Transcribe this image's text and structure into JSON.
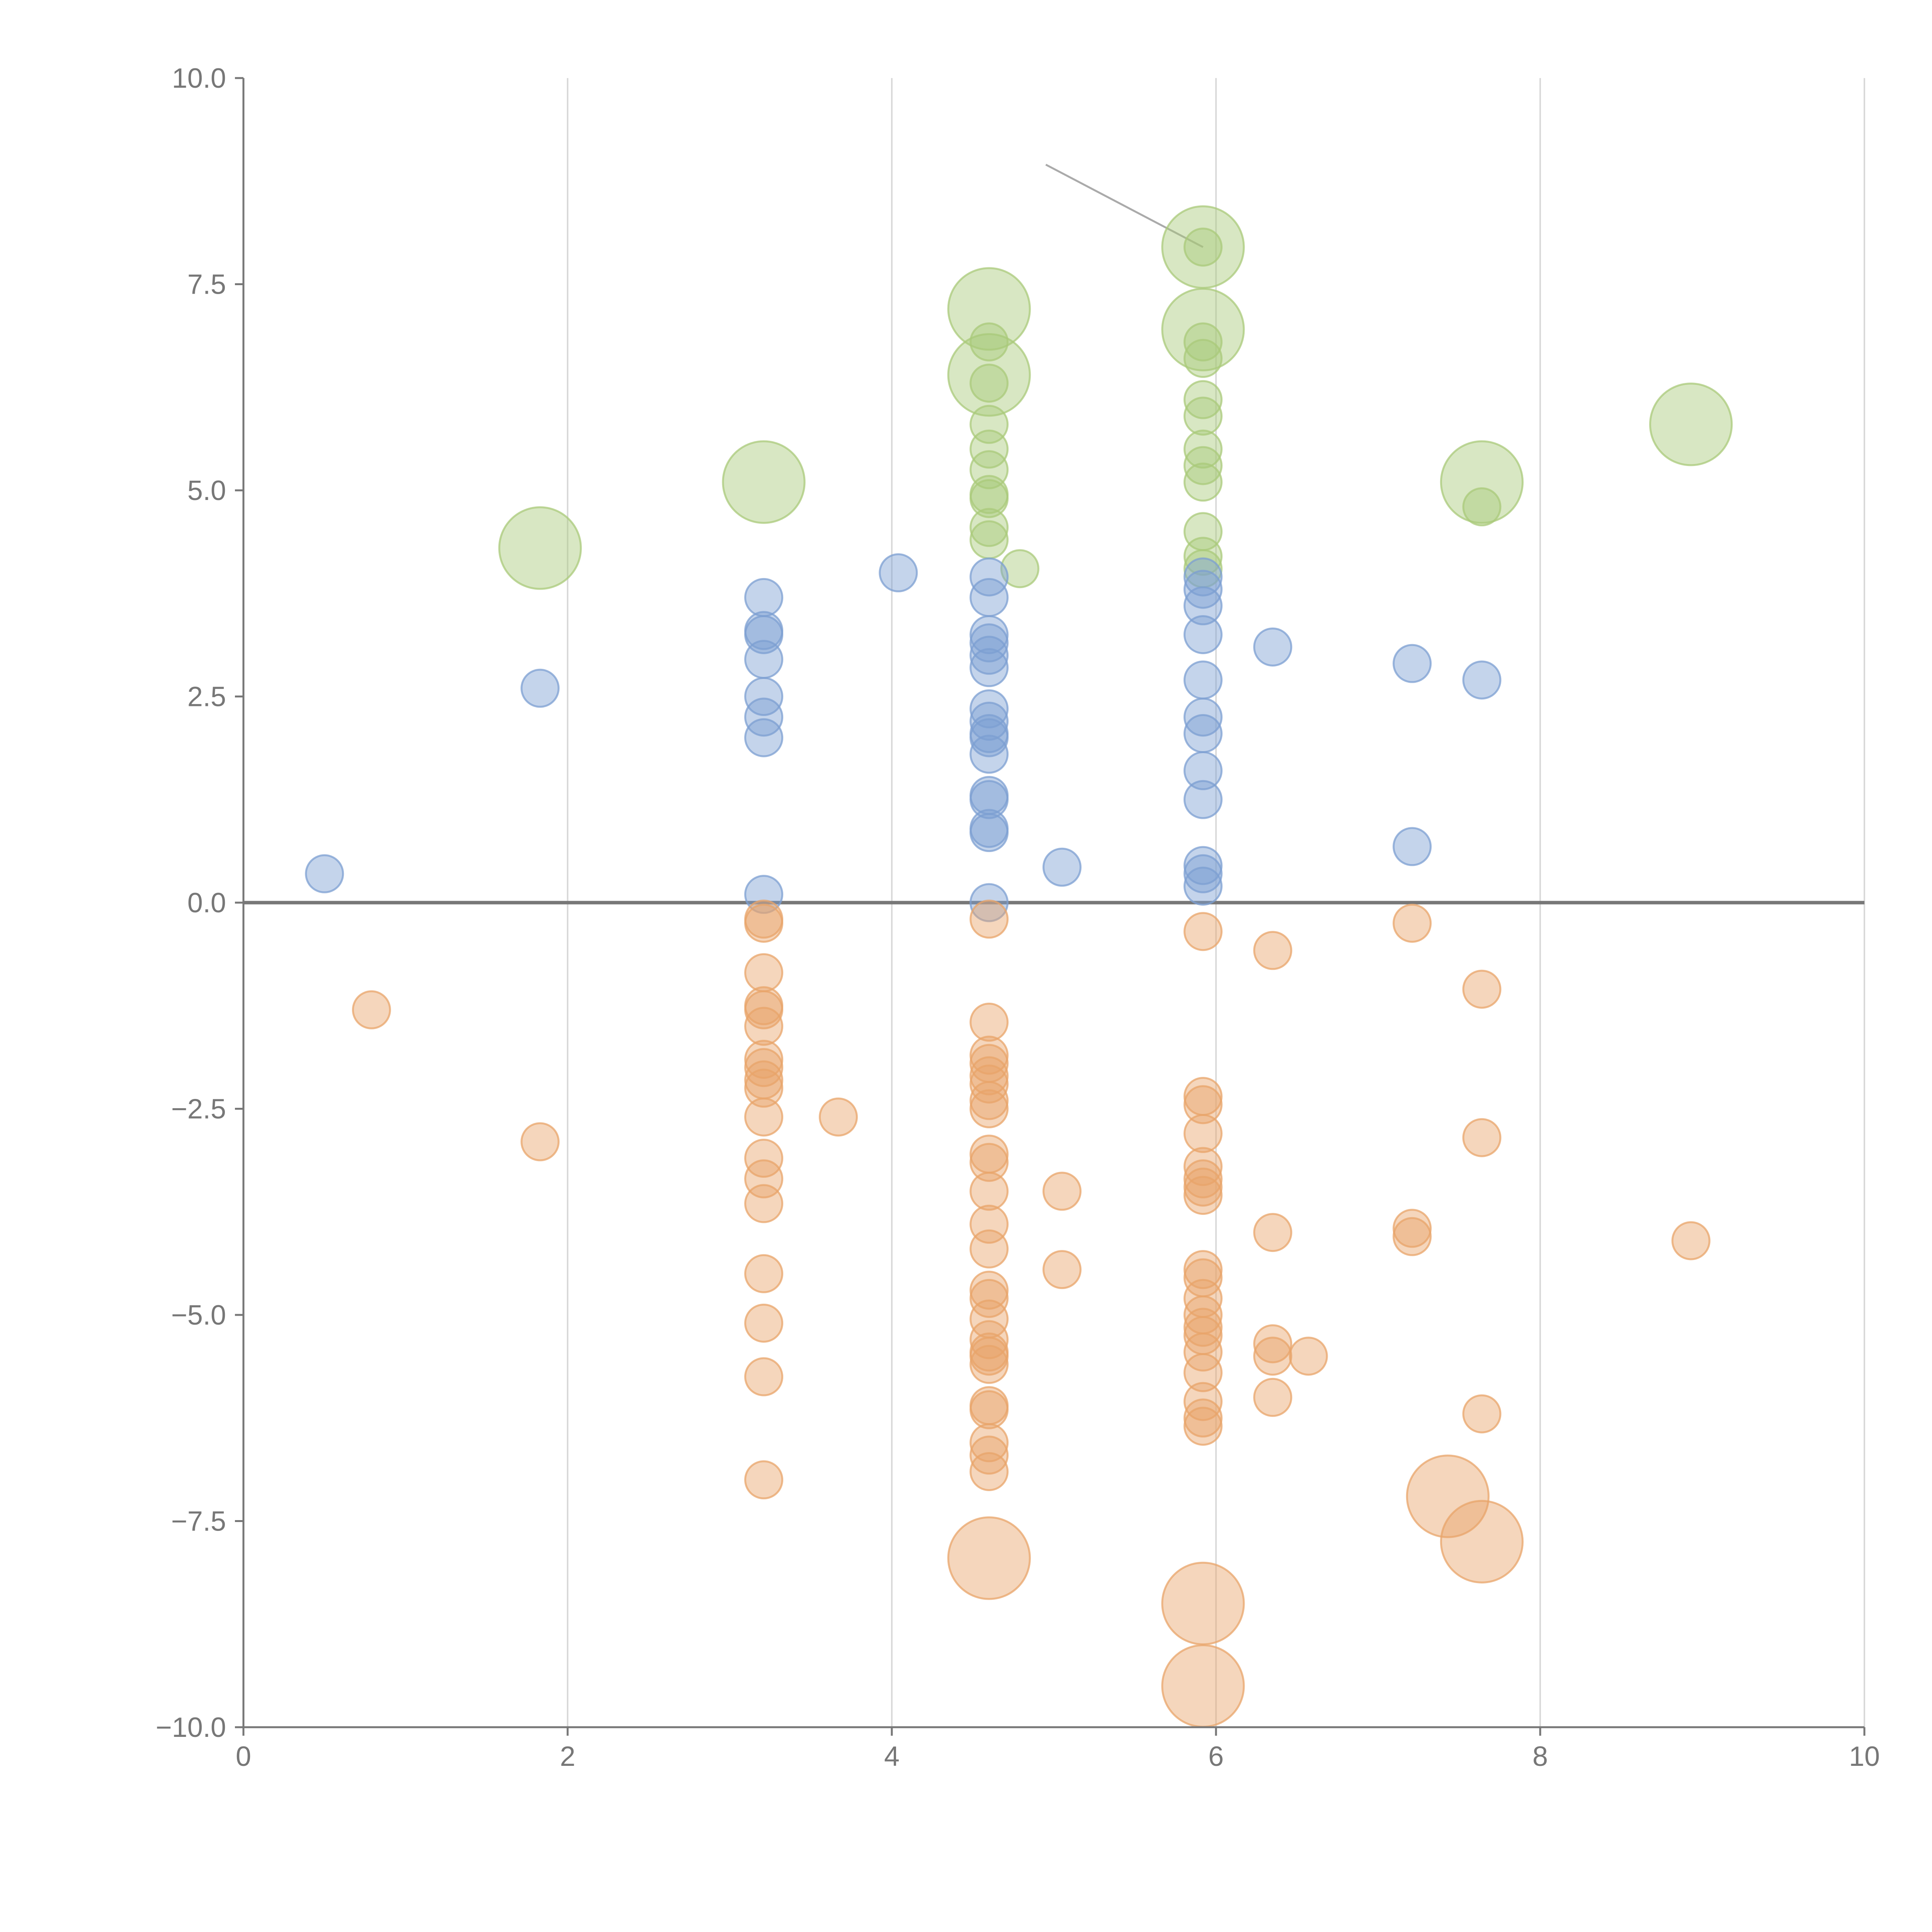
{
  "chart_data": {
    "type": "scatter",
    "title": "",
    "xlabel": "",
    "ylabel": "",
    "xlim": [
      0,
      10
    ],
    "ylim": [
      -10,
      10
    ],
    "grid": {
      "x": true,
      "y": false
    },
    "zero_line": true,
    "x_ticks": [
      0,
      2,
      4,
      6,
      8,
      10
    ],
    "x_tick_labels": [
      "0",
      "2",
      "4",
      "6",
      "8",
      "10"
    ],
    "y_ticks": [
      10,
      7.5,
      5,
      2.5,
      0,
      -2.5,
      -5,
      -7.5,
      -10
    ],
    "y_tick_labels": [
      "10.0",
      "7.5",
      "5.0",
      "2.5",
      "0.0",
      "−2.5",
      "−5.0",
      "−7.5",
      "−10.0"
    ],
    "colors": {
      "green": "#a9c97a",
      "blue": "#7c9fd2",
      "orange": "#e8a46a",
      "axis": "#777777",
      "grid": "#d9d9d9",
      "zero": "#777777",
      "annotation": "#aaaaaa"
    },
    "annotation_lines": [
      {
        "from": [
          4.95,
          8.95
        ],
        "to": [
          5.92,
          7.95
        ]
      }
    ],
    "series": [
      {
        "name": "green",
        "color": "#a9c97a",
        "points": [
          [
            1.83,
            4.3,
            2.2
          ],
          [
            3.21,
            5.1,
            2.2
          ],
          [
            4.6,
            7.2,
            2.2
          ],
          [
            4.6,
            6.4,
            2.2
          ],
          [
            4.6,
            6.8,
            1
          ],
          [
            4.6,
            6.3,
            1
          ],
          [
            4.6,
            5.8,
            1
          ],
          [
            4.6,
            5.5,
            1
          ],
          [
            4.6,
            5.25,
            1
          ],
          [
            4.6,
            4.95,
            1
          ],
          [
            4.6,
            4.9,
            1
          ],
          [
            4.6,
            4.55,
            1
          ],
          [
            4.6,
            4.4,
            1
          ],
          [
            4.79,
            4.05,
            1
          ],
          [
            5.92,
            7.95,
            2.2
          ],
          [
            5.92,
            6.95,
            2.2
          ],
          [
            5.92,
            7.95,
            1
          ],
          [
            5.92,
            6.8,
            1
          ],
          [
            5.92,
            6.6,
            1
          ],
          [
            5.92,
            6.1,
            1
          ],
          [
            5.92,
            5.9,
            1
          ],
          [
            5.92,
            5.5,
            1
          ],
          [
            5.92,
            5.3,
            1
          ],
          [
            5.92,
            5.1,
            1
          ],
          [
            5.92,
            4.5,
            1
          ],
          [
            5.92,
            4.2,
            1
          ],
          [
            5.92,
            4.05,
            1
          ],
          [
            7.64,
            5.1,
            2.2
          ],
          [
            7.64,
            4.8,
            1
          ],
          [
            8.93,
            5.8,
            2.2
          ]
        ]
      },
      {
        "name": "blue",
        "color": "#7c9fd2",
        "points": [
          [
            0.5,
            0.35,
            1
          ],
          [
            1.83,
            2.6,
            1
          ],
          [
            3.21,
            3.7,
            1
          ],
          [
            3.21,
            3.3,
            1
          ],
          [
            3.21,
            3.25,
            1
          ],
          [
            3.21,
            2.95,
            1
          ],
          [
            3.21,
            2.5,
            1
          ],
          [
            3.21,
            2.25,
            1
          ],
          [
            3.21,
            2.0,
            1
          ],
          [
            3.21,
            0.1,
            1
          ],
          [
            4.04,
            4.0,
            1
          ],
          [
            4.6,
            3.95,
            1
          ],
          [
            4.6,
            3.7,
            1
          ],
          [
            4.6,
            3.25,
            1
          ],
          [
            4.6,
            3.15,
            1
          ],
          [
            4.6,
            3.0,
            1
          ],
          [
            4.6,
            2.85,
            1
          ],
          [
            4.6,
            2.35,
            1
          ],
          [
            4.6,
            2.2,
            1
          ],
          [
            4.6,
            2.05,
            1
          ],
          [
            4.6,
            2.0,
            1
          ],
          [
            4.6,
            1.8,
            1
          ],
          [
            4.6,
            1.3,
            1
          ],
          [
            4.6,
            1.25,
            1
          ],
          [
            4.6,
            0.9,
            1
          ],
          [
            4.6,
            0.85,
            1
          ],
          [
            4.6,
            0.0,
            1
          ],
          [
            5.05,
            0.43,
            1
          ],
          [
            5.92,
            3.95,
            1
          ],
          [
            5.92,
            3.8,
            1
          ],
          [
            5.92,
            3.6,
            1
          ],
          [
            5.92,
            3.25,
            1
          ],
          [
            5.92,
            2.7,
            1
          ],
          [
            5.92,
            2.25,
            1
          ],
          [
            5.92,
            2.05,
            1
          ],
          [
            5.92,
            1.6,
            1
          ],
          [
            5.92,
            1.25,
            1
          ],
          [
            5.92,
            0.45,
            1
          ],
          [
            5.92,
            0.35,
            1
          ],
          [
            5.92,
            0.2,
            1
          ],
          [
            6.35,
            3.1,
            1
          ],
          [
            7.21,
            2.9,
            1
          ],
          [
            7.21,
            0.68,
            1
          ],
          [
            7.64,
            2.7,
            1
          ]
        ]
      },
      {
        "name": "orange",
        "color": "#e8a46a",
        "points": [
          [
            0.79,
            -1.3,
            1
          ],
          [
            1.83,
            -2.9,
            1
          ],
          [
            3.21,
            -0.2,
            1
          ],
          [
            3.21,
            -0.25,
            1
          ],
          [
            3.21,
            -0.85,
            1
          ],
          [
            3.21,
            -1.25,
            1
          ],
          [
            3.21,
            -1.3,
            1
          ],
          [
            3.21,
            -1.5,
            1
          ],
          [
            3.21,
            -1.9,
            1
          ],
          [
            3.21,
            -2.0,
            1
          ],
          [
            3.21,
            -2.15,
            1
          ],
          [
            3.21,
            -2.25,
            1
          ],
          [
            3.21,
            -2.6,
            1
          ],
          [
            3.21,
            -3.1,
            1
          ],
          [
            3.21,
            -3.35,
            1
          ],
          [
            3.21,
            -3.65,
            1
          ],
          [
            3.21,
            -4.5,
            1
          ],
          [
            3.21,
            -5.1,
            1
          ],
          [
            3.21,
            -5.75,
            1
          ],
          [
            3.21,
            -7.0,
            1
          ],
          [
            3.67,
            -2.6,
            1
          ],
          [
            4.6,
            -0.2,
            1
          ],
          [
            4.6,
            -1.45,
            1
          ],
          [
            4.6,
            -1.85,
            1
          ],
          [
            4.6,
            -1.95,
            1
          ],
          [
            4.6,
            -2.1,
            1
          ],
          [
            4.6,
            -2.2,
            1
          ],
          [
            4.6,
            -2.4,
            1
          ],
          [
            4.6,
            -2.5,
            1
          ],
          [
            4.6,
            -3.05,
            1
          ],
          [
            4.6,
            -3.15,
            1
          ],
          [
            4.6,
            -3.5,
            1
          ],
          [
            4.6,
            -3.9,
            1
          ],
          [
            4.6,
            -4.2,
            1
          ],
          [
            4.6,
            -4.7,
            1
          ],
          [
            4.6,
            -4.8,
            1
          ],
          [
            4.6,
            -5.05,
            1
          ],
          [
            4.6,
            -5.3,
            1
          ],
          [
            4.6,
            -5.45,
            1
          ],
          [
            4.6,
            -5.5,
            1
          ],
          [
            4.6,
            -5.6,
            1
          ],
          [
            4.6,
            -6.1,
            1
          ],
          [
            4.6,
            -6.15,
            1
          ],
          [
            4.6,
            -6.55,
            1
          ],
          [
            4.6,
            -6.7,
            1
          ],
          [
            4.6,
            -6.9,
            1
          ],
          [
            4.6,
            -7.95,
            2.2
          ],
          [
            5.05,
            -3.5,
            1
          ],
          [
            5.05,
            -4.45,
            1
          ],
          [
            5.92,
            -0.35,
            1
          ],
          [
            5.92,
            -2.35,
            1
          ],
          [
            5.92,
            -2.45,
            1
          ],
          [
            5.92,
            -2.8,
            1
          ],
          [
            5.92,
            -3.2,
            1
          ],
          [
            5.92,
            -3.35,
            1
          ],
          [
            5.92,
            -3.45,
            1
          ],
          [
            5.92,
            -3.55,
            1
          ],
          [
            5.92,
            -4.45,
            1
          ],
          [
            5.92,
            -4.55,
            1
          ],
          [
            5.92,
            -4.8,
            1
          ],
          [
            5.92,
            -5.0,
            1
          ],
          [
            5.92,
            -5.15,
            1
          ],
          [
            5.92,
            -5.25,
            1
          ],
          [
            5.92,
            -5.45,
            1
          ],
          [
            5.92,
            -5.7,
            1
          ],
          [
            5.92,
            -6.05,
            1
          ],
          [
            5.92,
            -6.25,
            1
          ],
          [
            5.92,
            -6.35,
            1
          ],
          [
            5.92,
            -8.5,
            2.2
          ],
          [
            5.92,
            -9.5,
            2.2
          ],
          [
            6.35,
            -0.58,
            1
          ],
          [
            6.35,
            -4.0,
            1
          ],
          [
            6.35,
            -5.35,
            1
          ],
          [
            6.35,
            -5.5,
            1
          ],
          [
            6.35,
            -6.0,
            1
          ],
          [
            6.57,
            -5.5,
            1
          ],
          [
            7.21,
            -0.25,
            1
          ],
          [
            7.21,
            -3.95,
            1
          ],
          [
            7.21,
            -4.05,
            1
          ],
          [
            7.43,
            -7.2,
            2.2
          ],
          [
            7.64,
            -1.05,
            1
          ],
          [
            7.64,
            -2.85,
            1
          ],
          [
            7.64,
            -6.2,
            1
          ],
          [
            7.64,
            -7.75,
            2.2
          ],
          [
            8.93,
            -4.1,
            1
          ]
        ]
      }
    ]
  }
}
